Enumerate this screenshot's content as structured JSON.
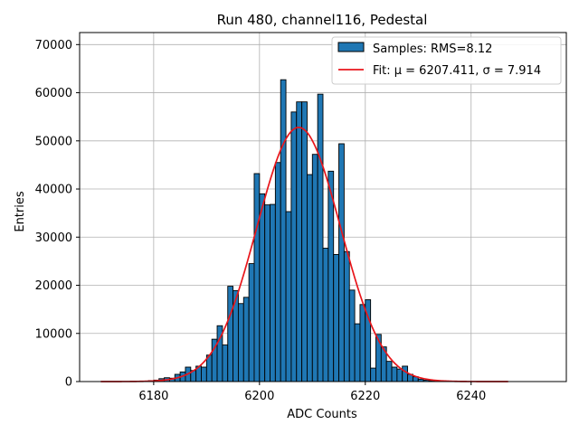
{
  "chart_data": {
    "type": "bar",
    "title": "Run 480, channel116, Pedestal",
    "xlabel": "ADC Counts",
    "ylabel": "Entries",
    "xlim": [
      6166,
      6258
    ],
    "ylim": [
      0,
      72500
    ],
    "xticks": [
      6180,
      6200,
      6220,
      6240
    ],
    "yticks": [
      0,
      10000,
      20000,
      30000,
      40000,
      50000,
      60000,
      70000
    ],
    "grid": true,
    "legend_position": "top-right",
    "histogram": {
      "name": "Samples: RMS=8.12",
      "color": "#1f77b4",
      "bin_width": 1,
      "bin_starts": [
        6178,
        6179,
        6180,
        6181,
        6182,
        6183,
        6184,
        6185,
        6186,
        6187,
        6188,
        6189,
        6190,
        6191,
        6192,
        6193,
        6194,
        6195,
        6196,
        6197,
        6198,
        6199,
        6200,
        6201,
        6202,
        6203,
        6204,
        6205,
        6206,
        6207,
        6208,
        6209,
        6210,
        6211,
        6212,
        6213,
        6214,
        6215,
        6216,
        6217,
        6218,
        6219,
        6220,
        6221,
        6222,
        6223,
        6224,
        6225,
        6226,
        6227,
        6228,
        6229,
        6230,
        6231,
        6232,
        6233,
        6234
      ],
      "counts": [
        100,
        200,
        300,
        600,
        800,
        700,
        1500,
        2000,
        3000,
        2300,
        3200,
        3000,
        5500,
        8800,
        11600,
        7600,
        19800,
        18900,
        16200,
        17500,
        24500,
        43200,
        39000,
        36700,
        36800,
        45500,
        62700,
        35300,
        56000,
        58100,
        58100,
        43000,
        47200,
        59700,
        27700,
        43700,
        26400,
        49400,
        27000,
        19000,
        12000,
        16000,
        17000,
        2800,
        9800,
        7200,
        4200,
        3000,
        2600,
        3200,
        1500,
        1000,
        500,
        300,
        200,
        100,
        50
      ]
    },
    "fit": {
      "name": "Fit: μ = 6207.411, σ = 7.914",
      "color": "#e8161b",
      "mu": 6207.411,
      "sigma": 7.914,
      "amplitude": 52800,
      "x_range": [
        6170,
        6247
      ]
    }
  }
}
